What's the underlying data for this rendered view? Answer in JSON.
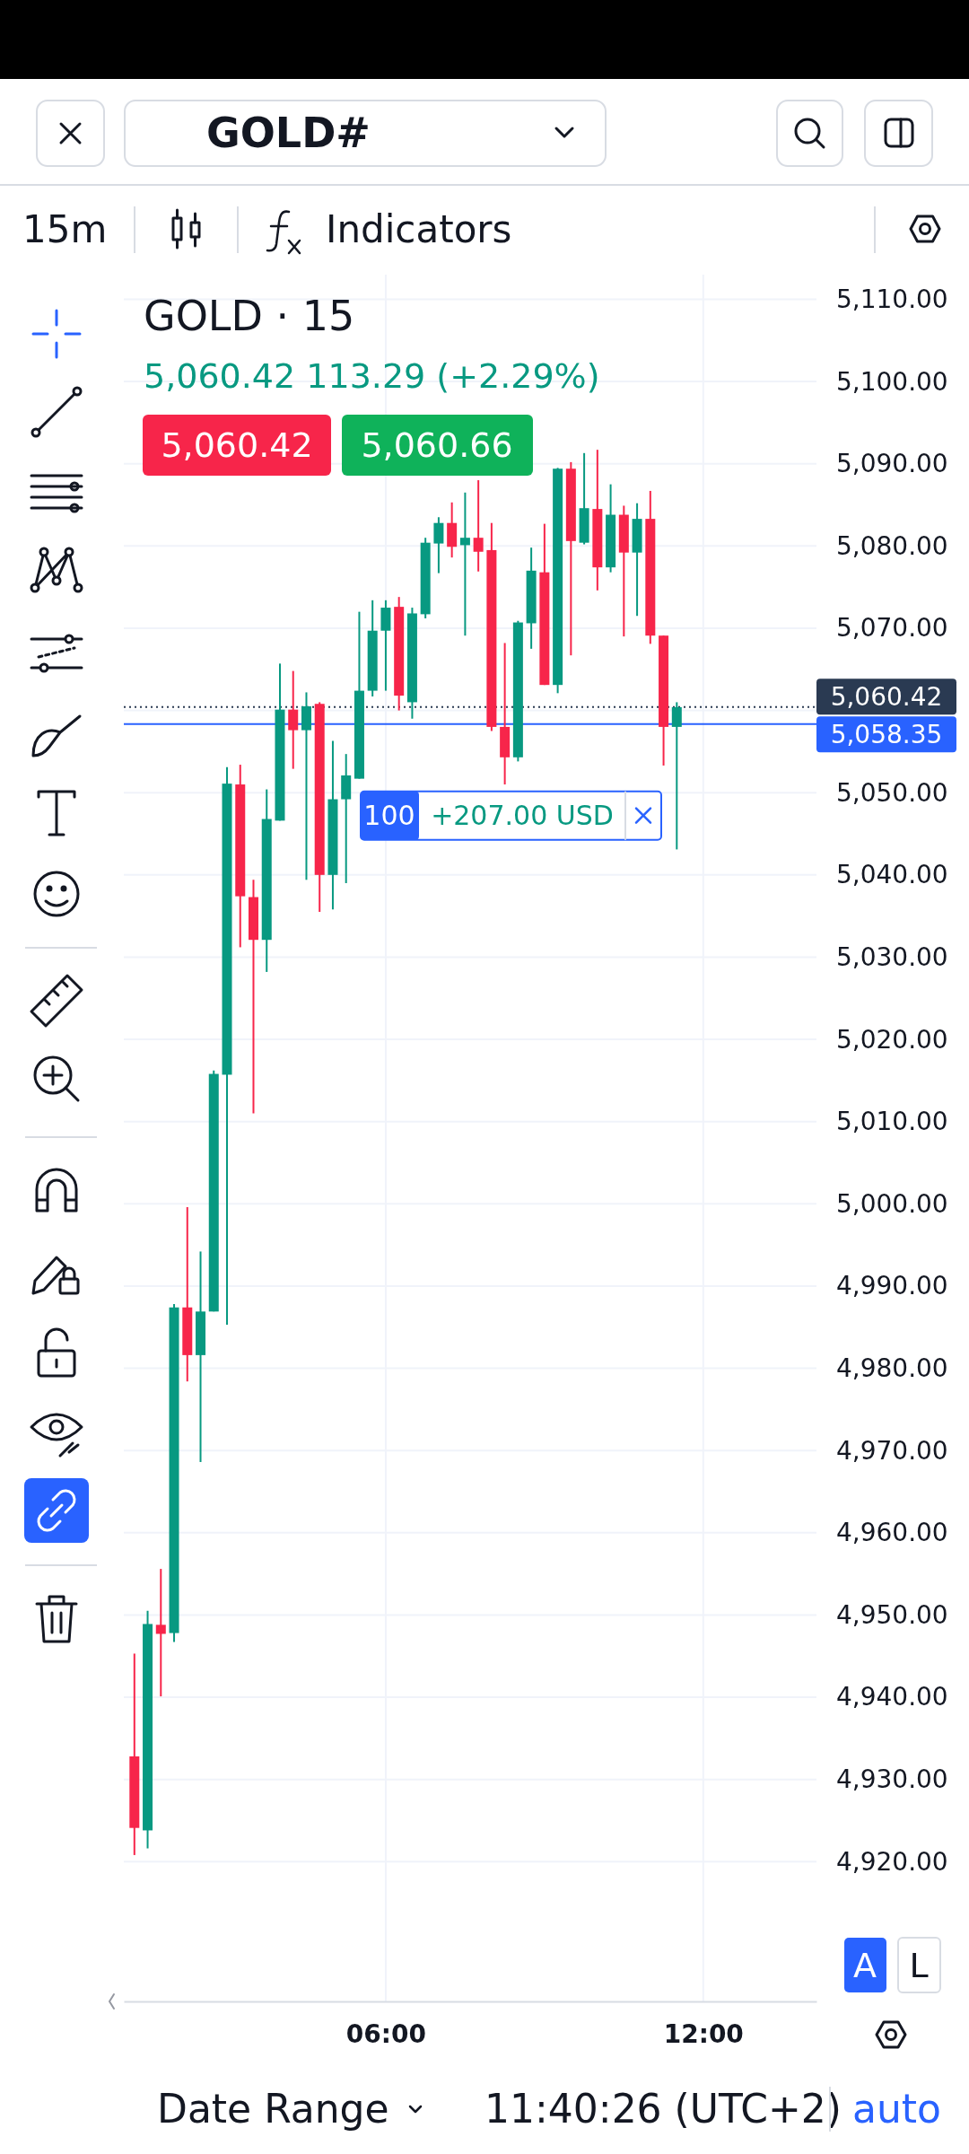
{
  "chart_data": {
    "type": "candlestick",
    "title": "GOLD · 15",
    "subtitle": "5,060.42 113.29 (+2.29%)",
    "x": [
      1.25,
      1.5,
      1.75,
      2,
      2.25,
      2.5,
      2.75,
      3,
      3.25,
      3.5,
      3.75,
      4,
      4.25,
      4.5,
      4.75,
      5,
      5.25,
      5.5,
      5.75,
      6,
      6.25,
      6.5,
      6.75,
      7,
      7.25,
      7.5,
      7.75,
      8,
      8.25,
      8.5,
      8.75,
      9,
      9.25,
      9.5,
      9.75,
      10,
      10.25,
      10.5,
      10.75,
      11,
      11.25,
      11.5
    ],
    "ohlc": [
      [
        4932.8,
        4945.3,
        4920.8,
        4924.1
      ],
      [
        4923.8,
        4950.5,
        4921.6,
        4948.9
      ],
      [
        4948.8,
        4955.6,
        4940.1,
        4947.7
      ],
      [
        4947.8,
        4987.8,
        4946.7,
        4987.4
      ],
      [
        4987.4,
        4999.6,
        4978.4,
        4981.6
      ],
      [
        4981.6,
        4994.2,
        4968.6,
        4986.9
      ],
      [
        4986.9,
        5016.2,
        4986.9,
        5015.8
      ],
      [
        5015.7,
        5053.1,
        4985.3,
        5051.1
      ],
      [
        5051.0,
        5053.4,
        5031.2,
        5037.4
      ],
      [
        5037.3,
        5039.4,
        5011.0,
        5032.1
      ],
      [
        5032.1,
        5050.4,
        5028.2,
        5046.8
      ],
      [
        5046.6,
        5065.7,
        5046.6,
        5060.1
      ],
      [
        5060.1,
        5064.8,
        5052.9,
        5057.6
      ],
      [
        5057.6,
        5062.2,
        5039.4,
        5060.5
      ],
      [
        5060.8,
        5061.0,
        5035.5,
        5040.0
      ],
      [
        5040.0,
        5056.3,
        5035.8,
        5049.2
      ],
      [
        5049.2,
        5054.7,
        5039.0,
        5052.1
      ],
      [
        5051.7,
        5072.0,
        5051.7,
        5062.4
      ],
      [
        5062.4,
        5073.4,
        5061.7,
        5069.7
      ],
      [
        5069.7,
        5073.4,
        5062.4,
        5072.5
      ],
      [
        5072.6,
        5073.8,
        5060.0,
        5061.8
      ],
      [
        5061.0,
        5072.5,
        5059.0,
        5071.8
      ],
      [
        5071.7,
        5081.0,
        5071.2,
        5080.4
      ],
      [
        5080.3,
        5083.5,
        5076.7,
        5082.8
      ],
      [
        5082.8,
        5085.3,
        5078.6,
        5079.9
      ],
      [
        5080.1,
        5086.5,
        5069.1,
        5081.0
      ],
      [
        5081.0,
        5088.0,
        5076.9,
        5079.3
      ],
      [
        5079.5,
        5082.8,
        5057.5,
        5058.0
      ],
      [
        5058.0,
        5068.2,
        5051.0,
        5054.3
      ],
      [
        5054.3,
        5070.9,
        5053.8,
        5070.7
      ],
      [
        5070.6,
        5079.8,
        5067.5,
        5077.0
      ],
      [
        5076.8,
        5082.7,
        5063.1,
        5063.1
      ],
      [
        5063.1,
        5089.5,
        5062.1,
        5089.4
      ],
      [
        5089.4,
        5090.2,
        5066.7,
        5080.6
      ],
      [
        5080.4,
        5091.3,
        5080.2,
        5084.6
      ],
      [
        5084.5,
        5091.7,
        5074.6,
        5077.4
      ],
      [
        5077.4,
        5087.5,
        5076.8,
        5083.8
      ],
      [
        5083.8,
        5084.9,
        5069.0,
        5079.2
      ],
      [
        5079.2,
        5085.2,
        5071.5,
        5083.3
      ],
      [
        5083.3,
        5086.7,
        5068.1,
        5069.1
      ],
      [
        5069.1,
        5069.1,
        5053.3,
        5058.0
      ],
      [
        5058.0,
        5061.0,
        5043.1,
        5060.4
      ]
    ],
    "xlim": [
      1.05,
      14.14
    ],
    "xticks": [
      {
        "value": 6,
        "label": "06:00"
      },
      {
        "value": 12,
        "label": "12:00"
      }
    ],
    "ylim": [
      4903,
      5113
    ],
    "yticks": [
      {
        "value": 4920,
        "label": "4,920.00"
      },
      {
        "value": 4930,
        "label": "4,930.00"
      },
      {
        "value": 4940,
        "label": "4,940.00"
      },
      {
        "value": 4950,
        "label": "4,950.00"
      },
      {
        "value": 4960,
        "label": "4,960.00"
      },
      {
        "value": 4970,
        "label": "4,970.00"
      },
      {
        "value": 4980,
        "label": "4,980.00"
      },
      {
        "value": 4990,
        "label": "4,990.00"
      },
      {
        "value": 5000,
        "label": "5,000.00"
      },
      {
        "value": 5010,
        "label": "5,010.00"
      },
      {
        "value": 5020,
        "label": "5,020.00"
      },
      {
        "value": 5030,
        "label": "5,030.00"
      },
      {
        "value": 5040,
        "label": "5,040.00"
      },
      {
        "value": 5050,
        "label": "5,050.00"
      },
      {
        "value": 5060,
        "label": null
      },
      {
        "value": 5070,
        "label": "5,070.00"
      },
      {
        "value": 5080,
        "label": "5,080.00"
      },
      {
        "value": 5090,
        "label": "5,090.00"
      },
      {
        "value": 5100,
        "label": "5,100.00"
      },
      {
        "value": 5110,
        "label": "5,110.00"
      }
    ],
    "grid": true,
    "ref_lines": [
      {
        "axis": "y",
        "value": 5060.42,
        "label": "5,060.42",
        "color": "#2a3a52",
        "line_style": "dotted"
      },
      {
        "axis": "y",
        "value": 5058.35,
        "label": "5,058.35",
        "color": "#2962ff",
        "line_style": "solid"
      }
    ],
    "annotations": [
      "GOLD#",
      "15m",
      "Indicators",
      "5,060.42",
      "5,060.66",
      "100",
      "+207.00 USD",
      "A",
      "L",
      "Date Range",
      "11:40:26 (UTC+2)",
      "auto"
    ]
  }
}
